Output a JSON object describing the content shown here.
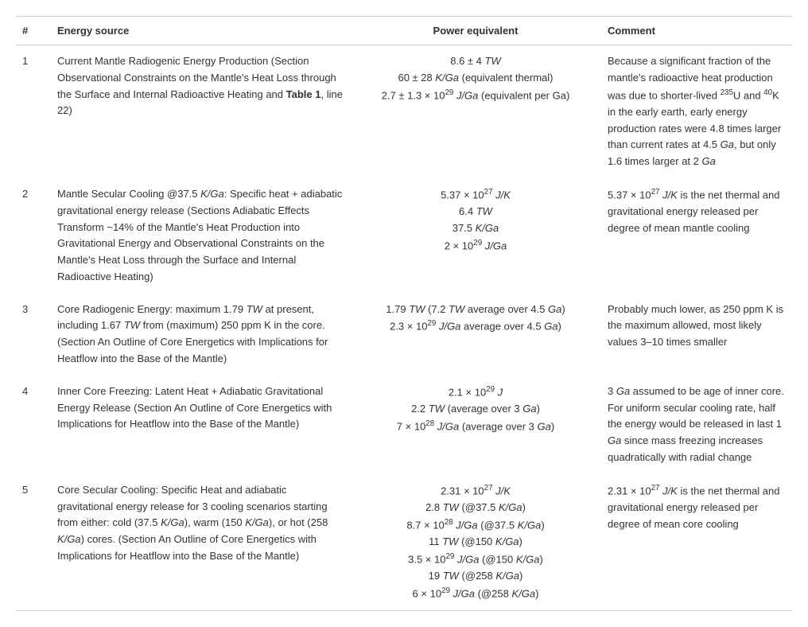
{
  "columns": {
    "num": "#",
    "source": "Energy source",
    "power": "Power equivalent",
    "comment": "Comment"
  },
  "rows": [
    {
      "num": "1",
      "source_html": "Current Mantle Radiogenic Energy Production (Section Observational Constraints on the Mantle's Heat Loss through the Surface and Internal Radioactive Heating and <b>Table 1</b>, line 22)",
      "power_lines_html": [
        "8.6 ± 4 <span class='italic'>TW</span>",
        "60 ± 28 <span class='italic'>K/Ga</span> (equivalent thermal)",
        "2.7 ± 1.3 × 10<sup>29</sup> <span class='italic'>J/Ga</span> (equivalent per Ga)"
      ],
      "comment_html": "Because a significant fraction of the mantle's radioactive heat production was due to shorter-lived <sup>235</sup>U and <sup>40</sup>K in the early earth, early energy production rates were 4.8 times larger than current rates at 4.5 <span class='italic'>Ga</span>, but only 1.6 times larger at 2 <span class='italic'>Ga</span>"
    },
    {
      "num": "2",
      "source_html": "Mantle Secular Cooling @37.5 <span class='italic'>K/Ga</span>: Specific heat + adiabatic gravitational energy release (Sections Adiabatic Effects Transform ~14% of the Mantle's Heat Production into Gravitational Energy and Observational Constraints on the Mantle's Heat Loss through the Surface and Internal Radioactive Heating)",
      "power_lines_html": [
        "5.37 × 10<sup>27</sup> <span class='italic'>J/K</span>",
        "6.4 <span class='italic'>TW</span>",
        "37.5 <span class='italic'>K/Ga</span>",
        "2 × 10<sup>29</sup> <span class='italic'>J/Ga</span>"
      ],
      "comment_html": "5.37 × 10<sup>27</sup> <span class='italic'>J/K</span> is the net thermal and gravitational energy released per degree of mean mantle cooling"
    },
    {
      "num": "3",
      "source_html": "Core Radiogenic Energy: maximum 1.79 <span class='italic'>TW</span> at present, including 1.67 <span class='italic'>TW</span> from (maximum) 250 ppm K in the core. (Section An Outline of Core Energetics with Implications for Heatflow into the Base of the Mantle)",
      "power_lines_html": [
        "1.79 <span class='italic'>TW</span> (7.2 <span class='italic'>TW</span> average over 4.5 <span class='italic'>Ga</span>)",
        "2.3 × 10<sup>29</sup> <span class='italic'>J/Ga</span> average over 4.5 <span class='italic'>Ga</span>)"
      ],
      "comment_html": "Probably much lower, as 250 ppm K is the maximum allowed, most likely values 3–10 times smaller"
    },
    {
      "num": "4",
      "source_html": "Inner Core Freezing: Latent Heat + Adiabatic Gravitational Energy Release (Section An Outline of Core Energetics with Implications for Heatflow into the Base of the Mantle)",
      "power_lines_html": [
        "2.1 × 10<sup>29</sup> <span class='italic'>J</span>",
        "2.2 <span class='italic'>TW</span> (average over 3 <span class='italic'>Ga</span>)",
        "7 × 10<sup>28</sup> <span class='italic'>J/Ga</span> (average over 3 <span class='italic'>Ga</span>)"
      ],
      "comment_html": "3 <span class='italic'>Ga</span> assumed to be age of inner core. For uniform secular cooling rate, half the energy would be released in last 1 <span class='italic'>Ga</span> since mass freezing increases quadratically with radial change"
    },
    {
      "num": "5",
      "source_html": "Core Secular Cooling: Specific Heat and adiabatic gravitational energy release for 3 cooling scenarios starting from either: cold (37.5 <span class='italic'>K/Ga</span>), warm (150 <span class='italic'>K/Ga</span>), or hot (258 <span class='italic'>K/Ga</span>) cores. (Section An Outline of Core Energetics with Implications for Heatflow into the Base of the Mantle)",
      "power_lines_html": [
        "2.31 × 10<sup>27</sup> <span class='italic'>J/K</span>",
        "2.8 <span class='italic'>TW</span> (@37.5 <span class='italic'>K/Ga</span>)",
        "8.7 × 10<sup>28</sup> <span class='italic'>J/Ga</span> (@37.5 <span class='italic'>K/Ga</span>)",
        "11 <span class='italic'>TW</span> (@150 <span class='italic'>K/Ga</span>)",
        "3.5 × 10<sup>29</sup> <span class='italic'>J/Ga</span> (@150 <span class='italic'>K/Ga</span>)",
        "19 <span class='italic'>TW</span> (@258 <span class='italic'>K/Ga</span>)",
        "6 × 10<sup>29</sup> <span class='italic'>J/Ga</span> (@258 <span class='italic'>K/Ga</span>)"
      ],
      "comment_html": "2.31 × 10<sup>27</sup> <span class='italic'>J/K</span> is the net thermal and gravitational energy released per degree of mean core cooling"
    }
  ]
}
